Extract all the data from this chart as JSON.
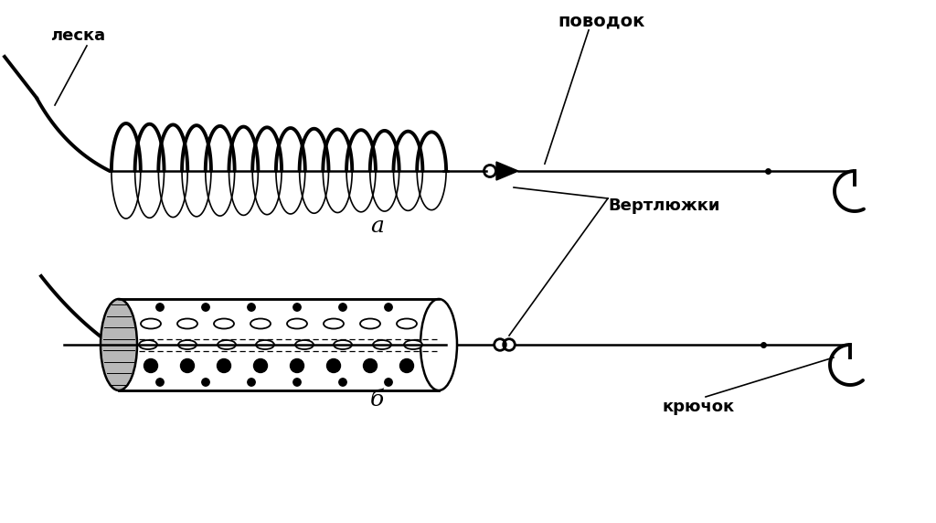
{
  "bg_color": "#ffffff",
  "line_color": "#000000",
  "label_leska": "леска",
  "label_povodog": "поводок",
  "label_vertlyuzhki": "Вертлюжки",
  "label_kryuchok": "крючок",
  "label_a": "а",
  "label_b": "б",
  "figsize": [
    10.24,
    5.72
  ],
  "dpi": 100
}
